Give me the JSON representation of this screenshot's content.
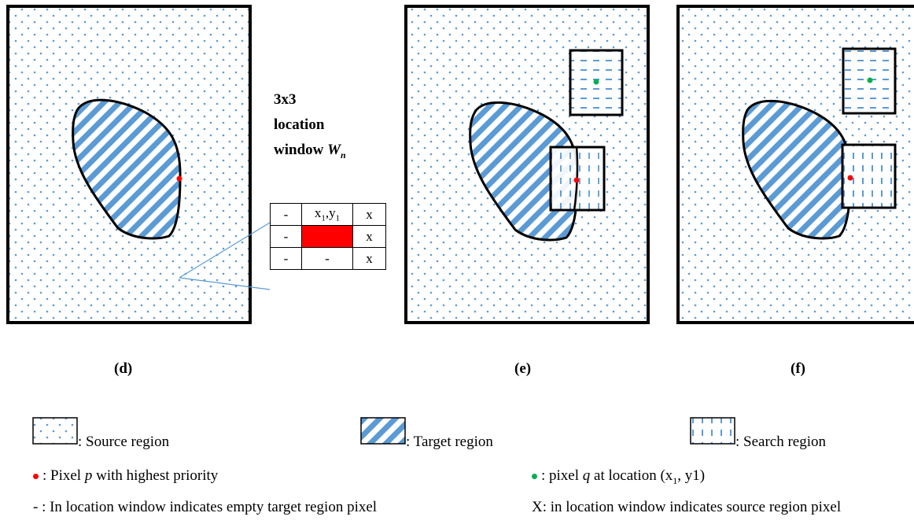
{
  "panels": [
    {
      "id": "d",
      "caption": "(d)"
    },
    {
      "id": "e",
      "caption": "(e)"
    },
    {
      "id": "f",
      "caption": "(f)"
    }
  ],
  "location_window": {
    "title_line1": "3x3",
    "title_line2": "location",
    "title_line3": "window",
    "title_symbol": "W",
    "title_subscript": "n",
    "cells": [
      [
        "-",
        "x1,y1",
        "x"
      ],
      [
        "-",
        "",
        "x"
      ],
      [
        "-",
        "-",
        "x"
      ]
    ],
    "cell_x1": "x",
    "cell_sub1": "1",
    "cell_y1": ",y",
    "cell_sub2": "1",
    "highlight_color": "#ff0000"
  },
  "legend": {
    "source_label": ": Source region",
    "target_label": ": Target region",
    "search_label": ": Search region",
    "pixel_p_prefix": ":  Pixel ",
    "pixel_p_symbol": "p",
    "pixel_p_suffix": " with highest priority",
    "pixel_q_prefix": ": pixel ",
    "pixel_q_symbol": "q",
    "pixel_q_suffix_a": " at location (x",
    "pixel_q_sub": "1",
    "pixel_q_suffix_b": ", y1)",
    "empty_note": "- : In location window indicates empty target region pixel",
    "source_note": "X: in location window indicates source region pixel"
  },
  "colors": {
    "pattern_blue": "#5b9bd5",
    "pixel_p": "#ff0000",
    "pixel_q": "#00b050",
    "outline": "#000000"
  },
  "icons": [
    "pixel-p-dot-icon",
    "pixel-q-dot-icon"
  ]
}
